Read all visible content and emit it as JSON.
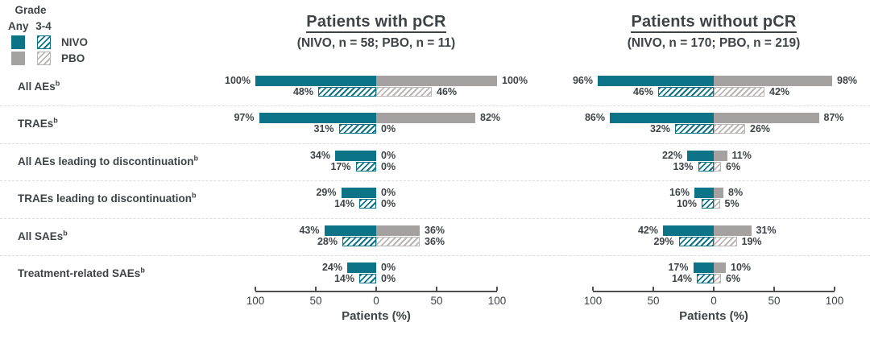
{
  "chart_data": {
    "type": "bar",
    "variant": "diverging-butterfly",
    "xlabel": "Patients (%)",
    "axis_ticks": [
      "100",
      "50",
      "0",
      "50",
      "100"
    ],
    "xlim": [
      -100,
      100
    ],
    "grid": false,
    "footnote_marker": "b",
    "categories": [
      "All AEs",
      "TRAEs",
      "All AEs leading to discontinuation",
      "TRAEs leading to discontinuation",
      "All SAEs",
      "Treatment-related SAEs"
    ],
    "legend": {
      "grade_label": "Grade",
      "any_label": "Any",
      "g34_label": "3-4",
      "series": [
        {
          "name": "NIVO"
        },
        {
          "name": "PBO"
        }
      ]
    },
    "panels": [
      {
        "title": "Patients with pCR",
        "subtitle": "(NIVO, n = 58; PBO, n = 11)",
        "rows": [
          {
            "nivo_any": 100,
            "nivo_g34": 48,
            "pbo_any": 100,
            "pbo_g34": 46
          },
          {
            "nivo_any": 97,
            "nivo_g34": 31,
            "pbo_any": 82,
            "pbo_g34": 0
          },
          {
            "nivo_any": 34,
            "nivo_g34": 17,
            "pbo_any": 0,
            "pbo_g34": 0
          },
          {
            "nivo_any": 29,
            "nivo_g34": 14,
            "pbo_any": 0,
            "pbo_g34": 0
          },
          {
            "nivo_any": 43,
            "nivo_g34": 28,
            "pbo_any": 36,
            "pbo_g34": 36
          },
          {
            "nivo_any": 24,
            "nivo_g34": 14,
            "pbo_any": 0,
            "pbo_g34": 0
          }
        ]
      },
      {
        "title": "Patients without pCR",
        "subtitle": "(NIVO, n = 170; PBO, n = 219)",
        "rows": [
          {
            "nivo_any": 96,
            "nivo_g34": 46,
            "pbo_any": 98,
            "pbo_g34": 42
          },
          {
            "nivo_any": 86,
            "nivo_g34": 32,
            "pbo_any": 87,
            "pbo_g34": 26
          },
          {
            "nivo_any": 22,
            "nivo_g34": 13,
            "pbo_any": 11,
            "pbo_g34": 6
          },
          {
            "nivo_any": 16,
            "nivo_g34": 10,
            "pbo_any": 8,
            "pbo_g34": 5
          },
          {
            "nivo_any": 42,
            "nivo_g34": 29,
            "pbo_any": 31,
            "pbo_g34": 19
          },
          {
            "nivo_any": 17,
            "nivo_g34": 14,
            "pbo_any": 10,
            "pbo_g34": 6
          }
        ]
      }
    ],
    "colors": {
      "nivo": "#0d7488",
      "pbo": "#a5a1a1",
      "pbo_hatch": "#b9b6b5",
      "text": "#3e4347",
      "axis": "#4d4f52",
      "separator": "#dcdcdc"
    }
  }
}
